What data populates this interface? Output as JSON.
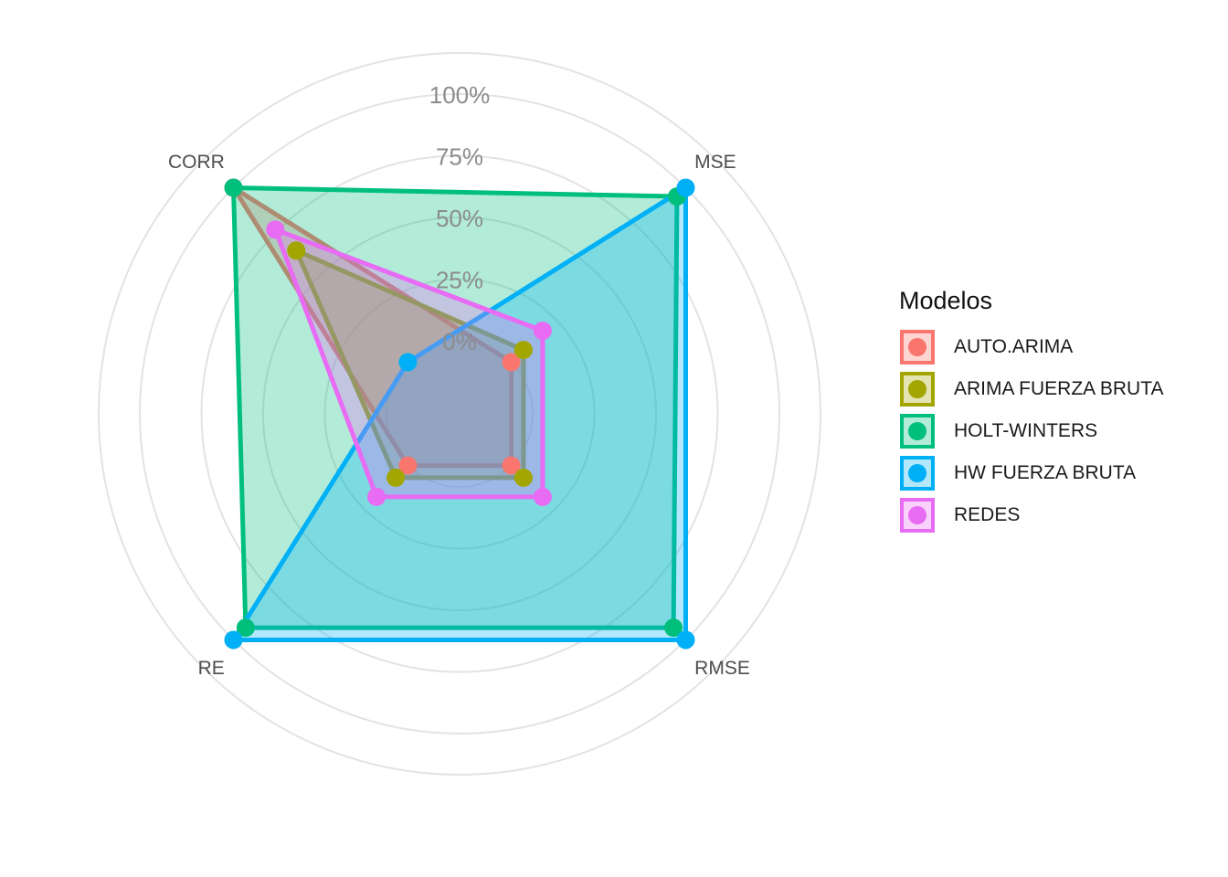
{
  "chart_data": {
    "type": "radar",
    "title": "",
    "axes": [
      "CORR",
      "MSE",
      "RMSE",
      "RE"
    ],
    "radial_ticks": [
      "0%",
      "25%",
      "50%",
      "75%",
      "100%"
    ],
    "radial_range": [
      0,
      100
    ],
    "grid": true,
    "legend_title": "Modelos",
    "legend_position": "right",
    "series": [
      {
        "name": "AUTO.ARIMA",
        "color": "#F8766D",
        "values": [
          100,
          0,
          0,
          0
        ]
      },
      {
        "name": "ARIMA FUERZA BRUTA",
        "color": "#A3A500",
        "values": [
          64,
          7,
          7,
          7
        ]
      },
      {
        "name": "HOLT-WINTERS",
        "color": "#00BF7D",
        "values": [
          100,
          95,
          93,
          93
        ]
      },
      {
        "name": "HW FUERZA BRUTA",
        "color": "#00B0F6",
        "values": [
          0,
          100,
          100,
          100
        ]
      },
      {
        "name": "REDES",
        "color": "#E76BF3",
        "values": [
          76,
          18,
          18,
          18
        ]
      }
    ]
  }
}
